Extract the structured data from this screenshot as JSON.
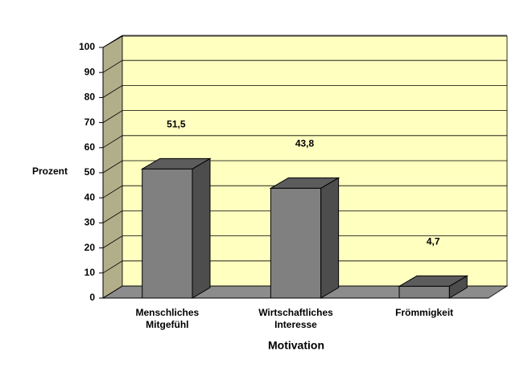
{
  "chart_data": {
    "type": "bar3d",
    "categories": [
      [
        "Menschliches",
        "Mitgefühl"
      ],
      [
        "Wirtschaftliches",
        "Interesse"
      ],
      [
        "Frömmigkeit"
      ]
    ],
    "values": [
      51.5,
      43.8,
      4.7
    ],
    "value_labels": [
      "51,5",
      "43,8",
      "4,7"
    ],
    "color": "#808080",
    "ylabel": "Prozent",
    "xlabel": "Motivation",
    "ylim": [
      0,
      100
    ],
    "yticks": [
      0,
      10,
      20,
      30,
      40,
      50,
      60,
      70,
      80,
      90,
      100
    ],
    "grid": true
  }
}
